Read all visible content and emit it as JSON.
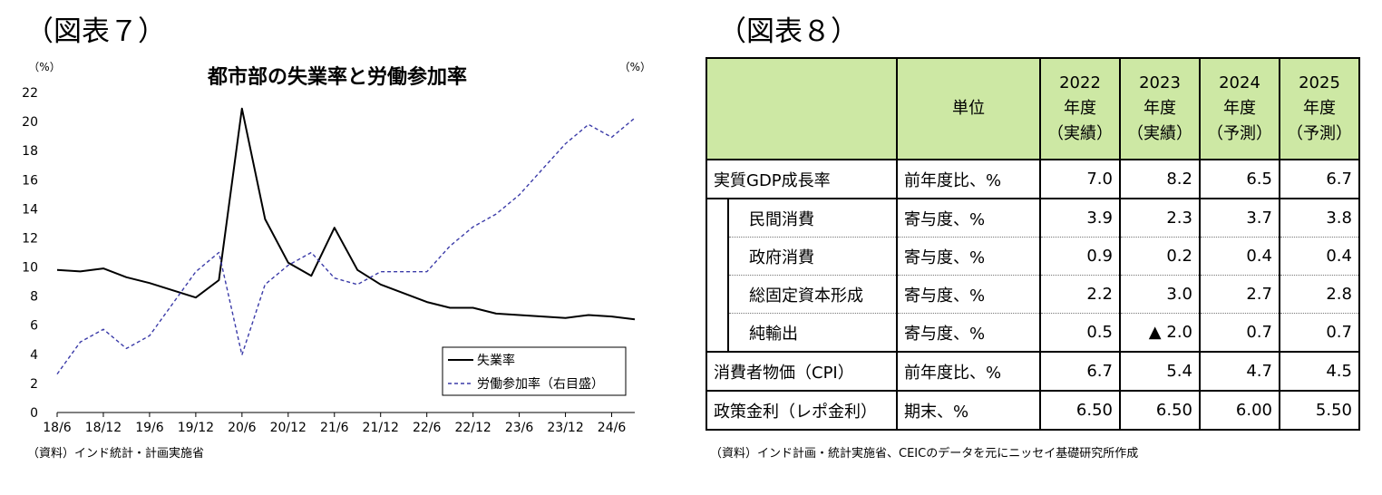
{
  "figure7": {
    "label": "（図表７）",
    "source": "（資料）インド統計・計画実施省",
    "chart_data": {
      "type": "line",
      "title": "都市部の失業率と労働参加率",
      "ylabel_left": "（%）",
      "ylabel_right": "（%）",
      "ylim_left": [
        0,
        22
      ],
      "ylim_right": [
        35,
        40
      ],
      "yticks_left": [
        "0",
        "2",
        "4",
        "6",
        "8",
        "10",
        "12",
        "14",
        "16",
        "18",
        "20",
        "22"
      ],
      "yticks_right": [
        "35",
        "36",
        "37",
        "38",
        "39",
        "40"
      ],
      "xticks": [
        "18/6",
        "18/12",
        "19/6",
        "19/12",
        "20/6",
        "20/12",
        "21/6",
        "21/12",
        "22/6",
        "22/12",
        "23/6",
        "23/12",
        "24/6"
      ],
      "x": [
        "18/6",
        "18/9",
        "18/12",
        "19/3",
        "19/6",
        "19/9",
        "19/12",
        "20/3",
        "20/6",
        "20/9",
        "20/12",
        "21/3",
        "21/6",
        "21/9",
        "21/12",
        "22/3",
        "22/6",
        "22/9",
        "22/12",
        "23/3",
        "23/6",
        "23/9",
        "23/12",
        "24/3",
        "24/6",
        "24/9"
      ],
      "series": [
        {
          "name": "失業率",
          "axis": "left",
          "style": "solid",
          "color": "#000000",
          "values": [
            9.8,
            9.7,
            9.9,
            9.3,
            8.9,
            8.4,
            7.9,
            9.1,
            20.9,
            13.3,
            10.3,
            9.4,
            12.7,
            9.8,
            8.8,
            8.2,
            7.6,
            7.2,
            7.2,
            6.8,
            6.7,
            6.6,
            6.5,
            6.7,
            6.6,
            6.4
          ]
        },
        {
          "name": "労働参加率（右目盛）",
          "axis": "right",
          "style": "dashed",
          "color": "#3b3ba8",
          "values": [
            35.6,
            36.1,
            36.3,
            36.0,
            36.2,
            36.7,
            37.2,
            37.5,
            35.9,
            37.0,
            37.3,
            37.5,
            37.1,
            37.0,
            37.2,
            37.2,
            37.2,
            37.6,
            37.9,
            38.1,
            38.4,
            38.8,
            39.2,
            39.5,
            39.3,
            39.6
          ]
        }
      ],
      "legend_position": "bottom-right",
      "grid": false
    }
  },
  "figure8": {
    "label": "（図表８）",
    "source": "（資料）インド計画・統計実施省、CEICのデータを元にニッセイ基礎研究所作成",
    "header": {
      "unit": "単位",
      "years": [
        {
          "year": "2022",
          "suffix": "年度",
          "note": "（実績）"
        },
        {
          "year": "2023",
          "suffix": "年度",
          "note": "（実績）"
        },
        {
          "year": "2024",
          "suffix": "年度",
          "note": "（予測）"
        },
        {
          "year": "2025",
          "suffix": "年度",
          "note": "（予測）"
        }
      ]
    },
    "rows": [
      {
        "item": "実質GDP成長率",
        "unit": "前年度比、%",
        "values": [
          "7.0",
          "8.2",
          "6.5",
          "6.7"
        ]
      },
      {
        "item": "民間消費",
        "unit": "寄与度、%",
        "values": [
          "3.9",
          "2.3",
          "3.7",
          "3.8"
        ]
      },
      {
        "item": "政府消費",
        "unit": "寄与度、%",
        "values": [
          "0.9",
          "0.2",
          "0.4",
          "0.4"
        ]
      },
      {
        "item": "総固定資本形成",
        "unit": "寄与度、%",
        "values": [
          "2.2",
          "3.0",
          "2.7",
          "2.8"
        ]
      },
      {
        "item": "純輸出",
        "unit": "寄与度、%",
        "values": [
          "0.5",
          "▲ 2.0",
          "0.7",
          "0.7"
        ]
      },
      {
        "item": "消費者物価（CPI）",
        "unit": "前年度比、%",
        "values": [
          "6.7",
          "5.4",
          "4.7",
          "4.5"
        ]
      },
      {
        "item": "政策金利（レポ金利）",
        "unit": "期末、%",
        "values": [
          "6.50",
          "6.50",
          "6.00",
          "5.50"
        ]
      }
    ]
  }
}
